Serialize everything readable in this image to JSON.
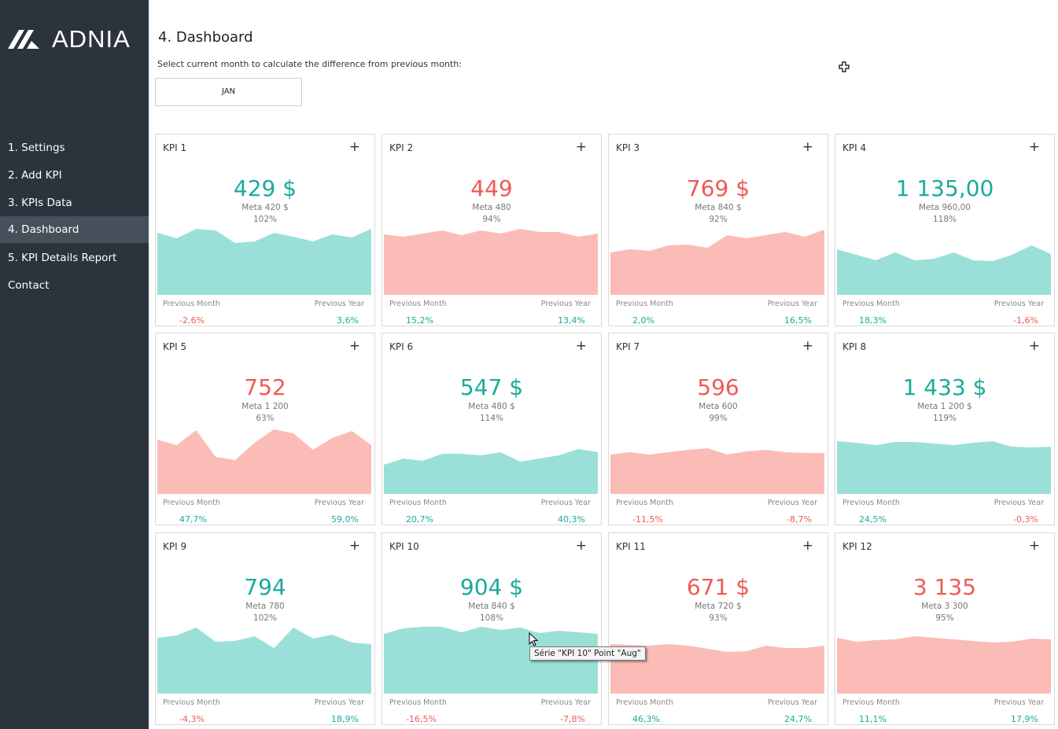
{
  "brand": {
    "name": "ADNIA"
  },
  "sidebar": {
    "items": [
      {
        "label": "1. Settings",
        "active": false
      },
      {
        "label": "2. Add KPI",
        "active": false
      },
      {
        "label": "3. KPIs Data",
        "active": false
      },
      {
        "label": "4. Dashboard",
        "active": true
      },
      {
        "label": "5. KPI Details Report",
        "active": false
      },
      {
        "label": "Contact",
        "active": false
      }
    ]
  },
  "header": {
    "title": "4. Dashboard",
    "subtitle": "Select current month to calculate the difference from previous month:",
    "month": "JAN"
  },
  "colors": {
    "good_text": "#1aab9b",
    "good_fill": "#9be0d8",
    "bad_text": "#ee5a54",
    "bad_fill": "#fbbcb8",
    "sidebar": "#2b333d"
  },
  "labels": {
    "previous_month": "Previous Month",
    "previous_year": "Previous Year",
    "add_icon": "plus-icon"
  },
  "kpis": [
    {
      "name": "KPI 1",
      "value": "429 $",
      "meta": "Meta 420 $",
      "pct": "102%",
      "status": "good",
      "prev_month": "-2,6%",
      "prev_month_status": "bad",
      "prev_year": "3,6%",
      "prev_year_status": "good",
      "series": [
        79,
        72,
        84,
        82,
        66,
        68,
        79,
        74,
        68,
        77,
        73,
        84
      ]
    },
    {
      "name": "KPI 2",
      "value": "449",
      "meta": "Meta 480",
      "pct": "94%",
      "status": "bad",
      "prev_month": "15,2%",
      "prev_month_status": "good",
      "prev_year": "13,4%",
      "prev_year_status": "good",
      "series": [
        77,
        74,
        78,
        82,
        76,
        82,
        78,
        84,
        80,
        80,
        74,
        78
      ]
    },
    {
      "name": "KPI 3",
      "value": "769 $",
      "meta": "Meta 840 $",
      "pct": "92%",
      "status": "bad",
      "prev_month": "2,0%",
      "prev_month_status": "good",
      "prev_year": "16,5%",
      "prev_year_status": "good",
      "series": [
        54,
        58,
        56,
        63,
        64,
        60,
        76,
        72,
        76,
        80,
        74,
        83
      ]
    },
    {
      "name": "KPI 4",
      "value": "1 135,00",
      "meta": "Meta 960,00",
      "pct": "118%",
      "status": "good",
      "prev_month": "18,3%",
      "prev_month_status": "good",
      "prev_year": "-1,6%",
      "prev_year_status": "bad",
      "series": [
        58,
        51,
        44,
        54,
        44,
        46,
        54,
        44,
        43,
        51,
        63,
        52
      ]
    },
    {
      "name": "KPI 5",
      "value": "752",
      "meta": "Meta 1 200",
      "pct": "63%",
      "status": "bad",
      "prev_month": "47,7%",
      "prev_month_status": "good",
      "prev_year": "59,0%",
      "prev_year_status": "good",
      "series": [
        69,
        62,
        81,
        47,
        43,
        65,
        82,
        77,
        56,
        71,
        80,
        62
      ]
    },
    {
      "name": "KPI 6",
      "value": "547 $",
      "meta": "Meta 480 $",
      "pct": "114%",
      "status": "good",
      "prev_month": "20,7%",
      "prev_month_status": "good",
      "prev_year": "40,3%",
      "prev_year_status": "good",
      "series": [
        37,
        45,
        42,
        51,
        51,
        49,
        53,
        41,
        45,
        49,
        57,
        53
      ]
    },
    {
      "name": "KPI 7",
      "value": "596",
      "meta": "Meta 600",
      "pct": "99%",
      "status": "bad",
      "prev_month": "-11,5%",
      "prev_month_status": "bad",
      "prev_year": "-8,7%",
      "prev_year_status": "bad",
      "series": [
        50,
        53,
        50,
        53,
        56,
        58,
        50,
        54,
        56,
        53,
        52,
        52
      ]
    },
    {
      "name": "KPI 8",
      "value": "1 433 $",
      "meta": "Meta 1 200 $",
      "pct": "119%",
      "status": "good",
      "prev_month": "24,5%",
      "prev_month_status": "good",
      "prev_year": "-0,3%",
      "prev_year_status": "bad",
      "series": [
        67,
        65,
        62,
        66,
        66,
        64,
        62,
        65,
        67,
        60,
        59,
        60
      ]
    },
    {
      "name": "KPI 9",
      "value": "794",
      "meta": "Meta 780",
      "pct": "102%",
      "status": "good",
      "prev_month": "-4,3%",
      "prev_month_status": "bad",
      "prev_year": "18,9%",
      "prev_year_status": "good",
      "series": [
        71,
        74,
        84,
        66,
        67,
        73,
        58,
        84,
        70,
        75,
        65,
        63
      ]
    },
    {
      "name": "KPI 10",
      "value": "904 $",
      "meta": "Meta 840 $",
      "pct": "108%",
      "status": "good",
      "prev_month": "-16,5%",
      "prev_month_status": "bad",
      "prev_year": "-7,8%",
      "prev_year_status": "bad",
      "series": [
        76,
        83,
        85,
        85,
        78,
        85,
        81,
        84,
        77,
        80,
        78,
        76
      ]
    },
    {
      "name": "KPI 11",
      "value": "671 $",
      "meta": "Meta 720 $",
      "pct": "93%",
      "status": "bad",
      "prev_month": "46,3%",
      "prev_month_status": "good",
      "prev_year": "24,7%",
      "prev_year_status": "good",
      "series": [
        63,
        62,
        61,
        63,
        61,
        57,
        53,
        54,
        61,
        58,
        58,
        61
      ]
    },
    {
      "name": "KPI 12",
      "value": "3 135",
      "meta": "Meta 3 300",
      "pct": "95%",
      "status": "bad",
      "prev_month": "11,1%",
      "prev_month_status": "good",
      "prev_year": "17,9%",
      "prev_year_status": "good",
      "series": [
        71,
        66,
        68,
        69,
        73,
        71,
        69,
        67,
        65,
        66,
        70,
        69
      ]
    }
  ],
  "tooltip": "Série \"KPI 10\" Point \"Aug\""
}
